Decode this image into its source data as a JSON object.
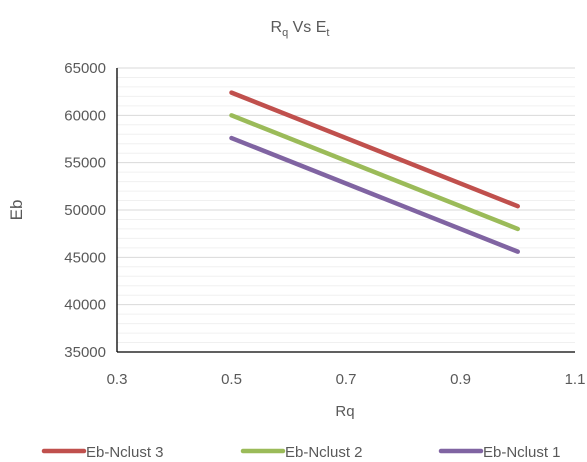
{
  "chart_data": {
    "type": "line",
    "title": {
      "main": "R",
      "sub1": "q",
      "mid": " Vs E",
      "sub2": "t"
    },
    "xlabel": "Rq",
    "ylabel": "Eb",
    "xlim": [
      0.3,
      1.1
    ],
    "ylim": [
      35000,
      65000
    ],
    "x_ticks": [
      "0.3",
      "0.5",
      "0.7",
      "0.9",
      "1.1"
    ],
    "y_ticks": [
      "35000",
      "40000",
      "45000",
      "50000",
      "55000",
      "60000",
      "65000"
    ],
    "grid": true,
    "legend_position": "bottom",
    "series": [
      {
        "name": "Eb-Nclust 3",
        "color": "#C0504D",
        "x": [
          0.5,
          1.0
        ],
        "y": [
          62400,
          50400
        ]
      },
      {
        "name": "Eb-Nclust 2",
        "color": "#9BBB59",
        "x": [
          0.5,
          1.0
        ],
        "y": [
          60000,
          48000
        ]
      },
      {
        "name": "Eb-Nclust 1",
        "color": "#8064A2",
        "x": [
          0.5,
          1.0
        ],
        "y": [
          57600,
          45600
        ]
      }
    ]
  }
}
